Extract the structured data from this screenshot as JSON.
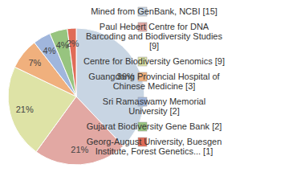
{
  "chart_data": {
    "type": "pie",
    "categories": [
      "Mined from GenBank, NCBI [15]",
      "Paul Hebert Centre for DNA Barcoding and Biodiversity Studies [9]",
      "Centre for Biodiversity Genomics [9]",
      "Guangdong Provincial Hospital of Chinese Medicine [3]",
      "Sri Ramaswamy Memorial University [2]",
      "Gujarat Biodiversity Gene Bank [2]",
      "Georg-August University, Buesgen Institute, Forest Genetics... [1]"
    ],
    "values": [
      36,
      21,
      21,
      7,
      4,
      4,
      2
    ],
    "value_labels": [
      "36%",
      "21%",
      "21%",
      "7%",
      "4%",
      "4%",
      "2%"
    ],
    "colors": [
      "#c8d5e3",
      "#e2a8a3",
      "#dee3a6",
      "#f0b07d",
      "#a0b6dc",
      "#97c47f",
      "#e06b57"
    ],
    "data_labels": true,
    "legend": "right"
  }
}
